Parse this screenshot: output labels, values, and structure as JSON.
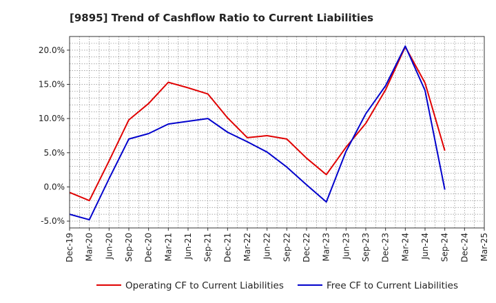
{
  "chart_data": {
    "type": "line",
    "title": "[9895]  Trend of Cashflow Ratio to Current Liabilities",
    "xlabel": "",
    "ylabel": "",
    "categories": [
      "Dec-19",
      "Mar-20",
      "Jun-20",
      "Sep-20",
      "Dec-20",
      "Mar-21",
      "Jun-21",
      "Sep-21",
      "Dec-21",
      "Mar-22",
      "Jun-22",
      "Sep-22",
      "Dec-22",
      "Mar-23",
      "Jun-23",
      "Sep-23",
      "Dec-23",
      "Mar-24",
      "Jun-24",
      "Sep-24",
      "Dec-24",
      "Mar-25"
    ],
    "ylim": [
      -6,
      22
    ],
    "yticks": [
      -5,
      0,
      5,
      10,
      15,
      20
    ],
    "ytick_labels": [
      "-5.0%",
      "0.0%",
      "5.0%",
      "10.0%",
      "15.0%",
      "20.0%"
    ],
    "grid": true,
    "legend_position": "bottom",
    "series": [
      {
        "name": "Operating CF to Current Liabilities",
        "color": "#e00000",
        "values": [
          -0.8,
          -2.0,
          3.8,
          9.8,
          12.2,
          15.3,
          14.5,
          13.6,
          10.1,
          7.2,
          7.5,
          7.0,
          4.2,
          1.8,
          5.8,
          9.3,
          14.2,
          20.5,
          15.2,
          5.3,
          null,
          null
        ]
      },
      {
        "name": "Free CF to Current Liabilities",
        "color": "#0000cc",
        "values": [
          -4.0,
          -4.8,
          1.2,
          7.0,
          7.8,
          9.2,
          9.6,
          10.0,
          8.0,
          6.6,
          5.1,
          2.9,
          0.3,
          -2.2,
          5.2,
          10.7,
          14.8,
          20.6,
          14.1,
          -0.4,
          null,
          null
        ]
      }
    ]
  }
}
